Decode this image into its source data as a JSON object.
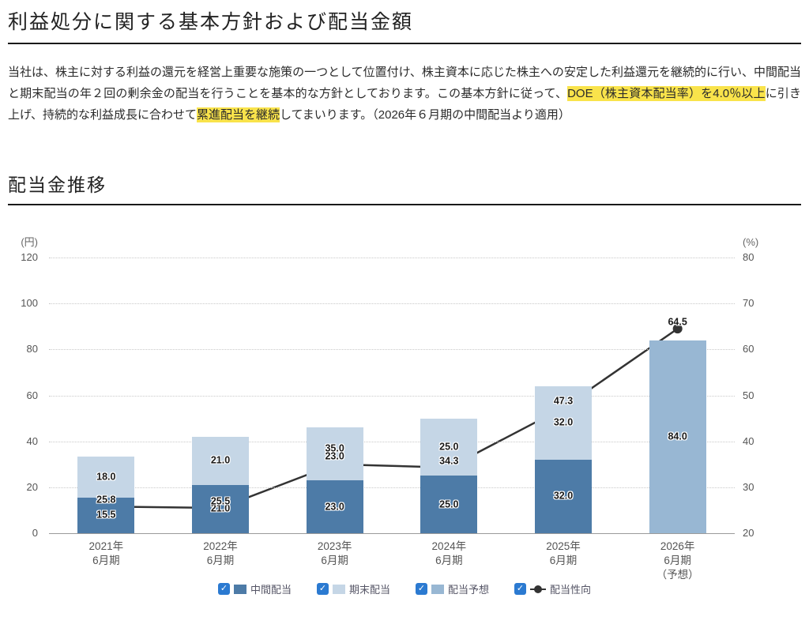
{
  "headings": {
    "policy": "利益処分に関する基本方針および配当金額",
    "chart": "配当金推移"
  },
  "intro": {
    "segments": [
      {
        "text": "当社は、株主に対する利益の還元を経営上重要な施策の一つとして位置付け、株主資本に応じた株主への安定した利益還元を継続的に行い、中間配当と期末配当の年２回の剰余金の配当を行うことを基本的な方針としております。この基本方針に従って、",
        "highlight": false
      },
      {
        "text": "DOE（株主資本配当率）を4.0％以上",
        "highlight": true
      },
      {
        "text": "に引き上げ、持続的な利益成長に合わせて",
        "highlight": false
      },
      {
        "text": "累進配当を継続",
        "highlight": true
      },
      {
        "text": "してまいります。（2026年６月期の中間配当より適用）",
        "highlight": false
      }
    ]
  },
  "colors": {
    "highlight": "#f9e34b",
    "interim": "#4d7ba7",
    "yearend": "#c5d6e6",
    "forecast": "#98b7d3",
    "line": "#333333",
    "checkbox": "#2b7ad1"
  },
  "chart_data": {
    "type": "bar+line",
    "title": "配当金推移",
    "categories": [
      "2021年6月期",
      "2022年6月期",
      "2023年6月期",
      "2024年6月期",
      "2025年6月期",
      "2026年6月期（予想）"
    ],
    "category_labels": [
      [
        "2021年",
        "6月期"
      ],
      [
        "2022年",
        "6月期"
      ],
      [
        "2023年",
        "6月期"
      ],
      [
        "2024年",
        "6月期"
      ],
      [
        "2025年",
        "6月期"
      ],
      [
        "2026年",
        "6月期",
        "（予想）"
      ]
    ],
    "bar_series": [
      {
        "name": "中間配当",
        "color": "#4d7ba7",
        "values": [
          15.5,
          21.0,
          23.0,
          25.0,
          32.0,
          null
        ]
      },
      {
        "name": "期末配当",
        "color": "#c5d6e6",
        "values": [
          18.0,
          21.0,
          23.0,
          25.0,
          32.0,
          null
        ]
      },
      {
        "name": "配当予想",
        "color": "#98b7d3",
        "values": [
          null,
          null,
          null,
          null,
          null,
          84.0
        ]
      }
    ],
    "line_series": {
      "name": "配当性向",
      "color": "#333333",
      "values": [
        25.8,
        25.5,
        35.0,
        34.3,
        47.3,
        64.5
      ]
    },
    "left_axis": {
      "unit": "(円)",
      "min": 0,
      "max": 120,
      "step": 20,
      "ticks": [
        120,
        100,
        80,
        60,
        40,
        20,
        0
      ]
    },
    "right_axis": {
      "unit": "(%)",
      "min": 20,
      "max": 80,
      "step": 10,
      "ticks": [
        80,
        70,
        60,
        50,
        40,
        30,
        20
      ]
    },
    "grid": "horizontal-dotted",
    "legend_position": "bottom-center"
  },
  "legend": {
    "items": [
      {
        "label": "中間配当",
        "marker": "swatch",
        "color": "#4d7ba7",
        "checked": true
      },
      {
        "label": "期末配当",
        "marker": "swatch",
        "color": "#c5d6e6",
        "checked": true
      },
      {
        "label": "配当予想",
        "marker": "swatch",
        "color": "#98b7d3",
        "checked": true
      },
      {
        "label": "配当性向",
        "marker": "line-dot",
        "color": "#333333",
        "checked": true
      }
    ],
    "check_glyph": "✓"
  }
}
